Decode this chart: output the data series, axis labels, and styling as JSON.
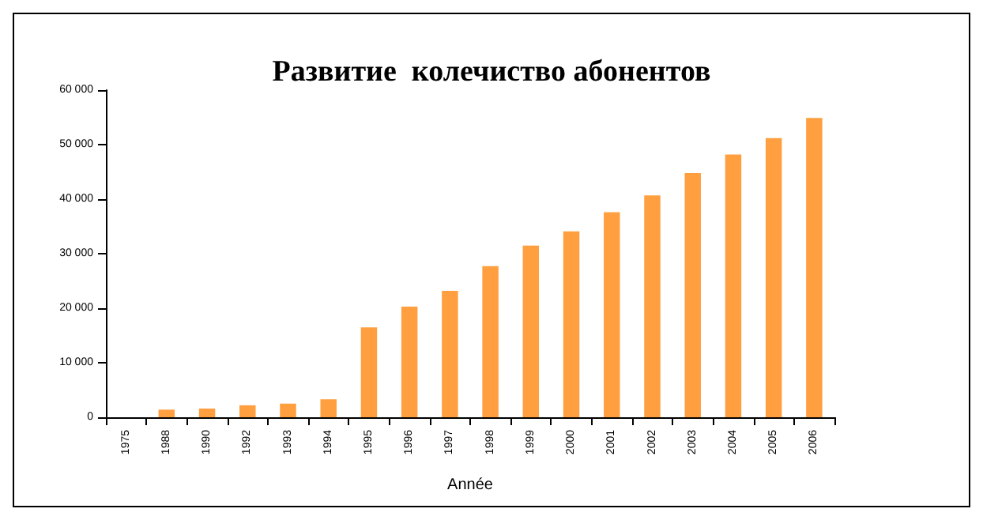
{
  "chart_data": {
    "type": "bar",
    "title": "Развитие  колечиство абонентов",
    "xlabel": "Année",
    "categories": [
      "1975",
      "1988",
      "1990",
      "1992",
      "1993",
      "1994",
      "1995",
      "1996",
      "1997",
      "1998",
      "1999",
      "2000",
      "2001",
      "2002",
      "2003",
      "2004",
      "2005",
      "2006"
    ],
    "values": [
      0,
      1400,
      1600,
      2200,
      2500,
      3300,
      16500,
      20300,
      23200,
      27700,
      31500,
      34100,
      37600,
      40700,
      44800,
      48200,
      51200,
      54900
    ],
    "color": "#ff9f40",
    "ylim": [
      0,
      60000
    ],
    "yticks": [
      {
        "value": 0,
        "label": "0"
      },
      {
        "value": 10000,
        "label": "10 000"
      },
      {
        "value": 20000,
        "label": "20 000"
      },
      {
        "value": 30000,
        "label": "30 000"
      },
      {
        "value": 40000,
        "label": "40 000"
      },
      {
        "value": 50000,
        "label": "50 000"
      },
      {
        "value": 60000,
        "label": "60 000"
      }
    ],
    "grid": false
  }
}
